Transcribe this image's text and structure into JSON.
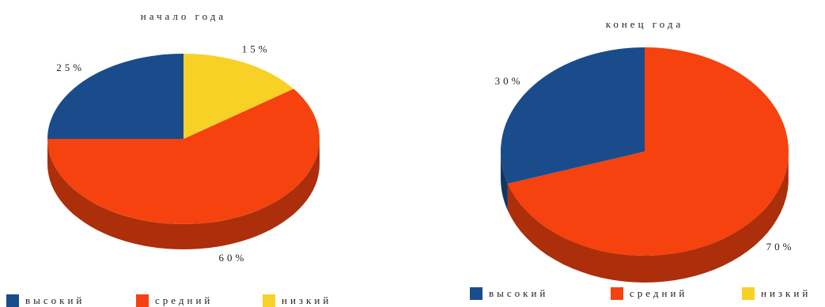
{
  "chart_data": [
    {
      "type": "pie3d",
      "title": "начало года",
      "categories": [
        "высокий",
        "средний",
        "низкий"
      ],
      "values": [
        25,
        60,
        15
      ],
      "value_labels": [
        "25%",
        "60%",
        "15%"
      ],
      "colors": [
        "#1a4c8c",
        "#f5420f",
        "#f7d126"
      ]
    },
    {
      "type": "pie3d",
      "title": "конец года",
      "categories": [
        "высокий",
        "средний",
        "низкий"
      ],
      "values": [
        30,
        70,
        0
      ],
      "value_labels": [
        "30%",
        "70%",
        null
      ],
      "colors": [
        "#1a4c8c",
        "#f5420f",
        "#f7d126"
      ]
    }
  ]
}
